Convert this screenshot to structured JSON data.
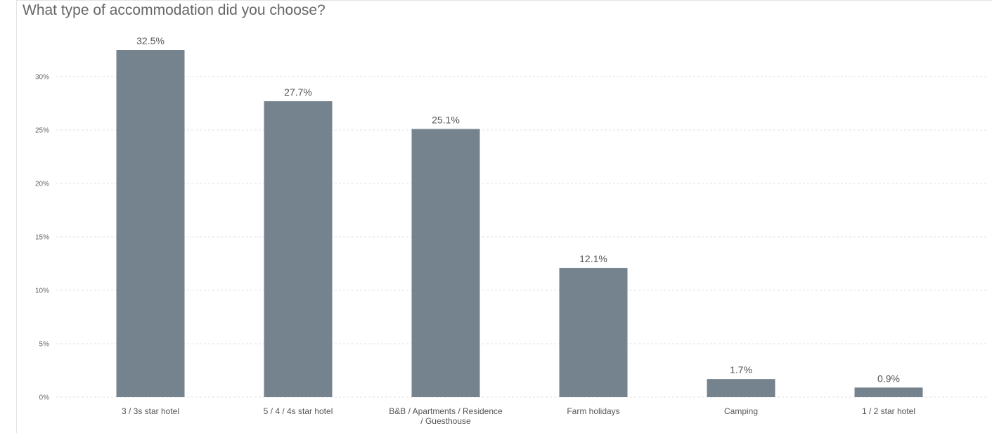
{
  "chart_data": {
    "type": "bar",
    "title": "What type of accommodation did you choose?",
    "categories": [
      [
        "3 / 3s star hotel"
      ],
      [
        "5 / 4 / 4s star hotel"
      ],
      [
        "B&B / Apartments / Residence",
        "/ Guesthouse"
      ],
      [
        "Farm holidays"
      ],
      [
        "Camping"
      ],
      [
        "1 / 2 star hotel"
      ]
    ],
    "values": [
      32.5,
      27.7,
      25.1,
      12.1,
      1.7,
      0.9
    ],
    "value_labels": [
      "32.5%",
      "27.7%",
      "25.1%",
      "12.1%",
      "1.7%",
      "0.9%"
    ],
    "y_ticks": [
      0,
      5,
      10,
      15,
      20,
      25,
      30
    ],
    "y_tick_labels": [
      "0%",
      "5%",
      "10%",
      "15%",
      "20%",
      "25%",
      "30%"
    ],
    "ylim": [
      0,
      35
    ],
    "grid": true,
    "legend": "none",
    "bar_color": "#75838f",
    "grid_color": "#e0e0e0"
  }
}
